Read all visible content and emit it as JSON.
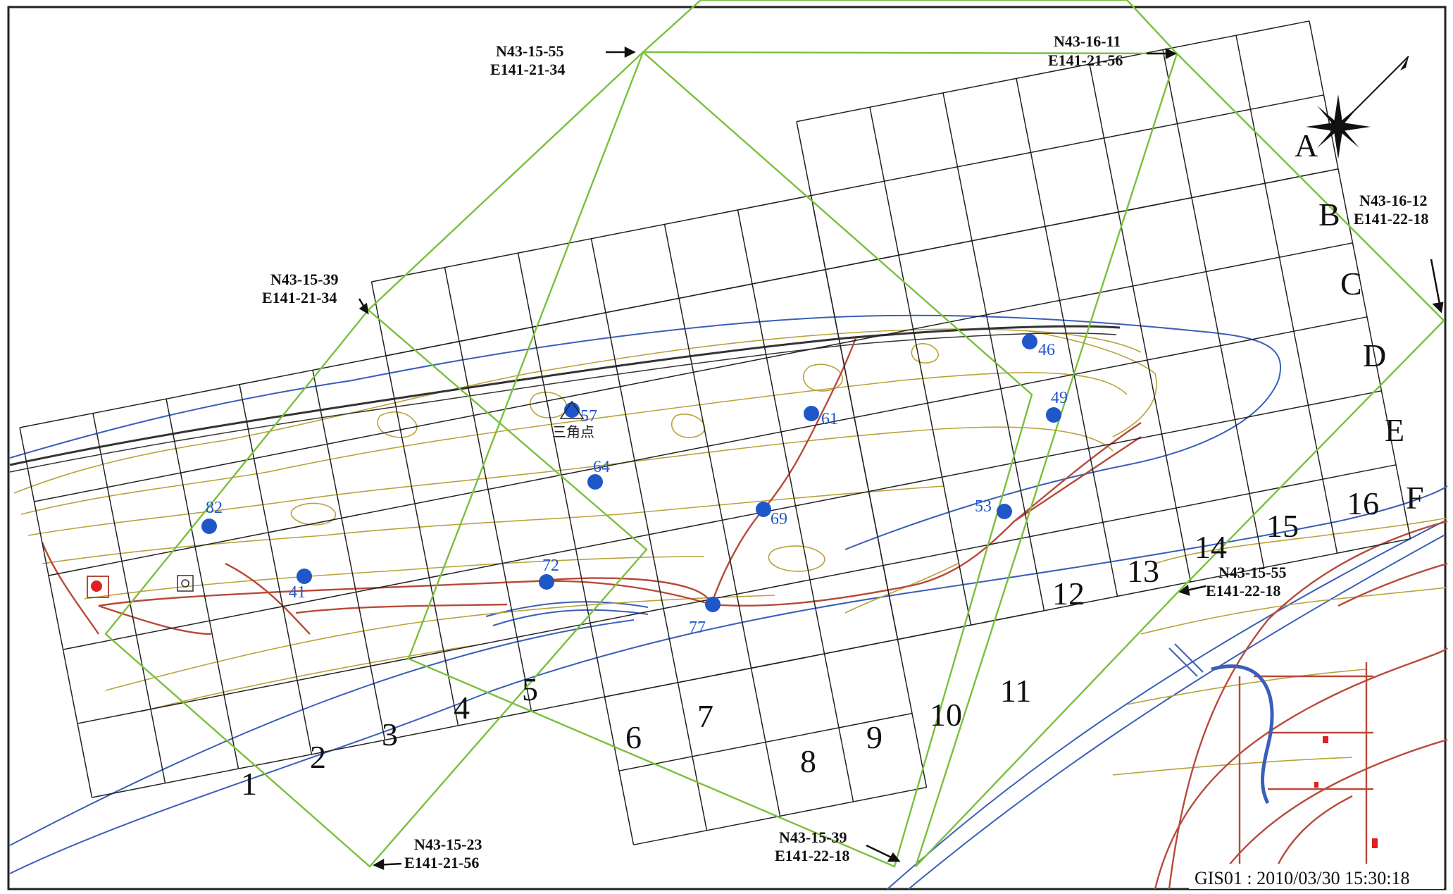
{
  "map": {
    "colors": {
      "grid": "#222222",
      "green_frame": "#7bbf3c",
      "river": "#3a5fb8",
      "contour": "#b9a23a",
      "road": "#b84a3a",
      "point": "#1f57c8",
      "marker": "#e02020"
    },
    "coordinates": [
      {
        "n": "N43-15-55",
        "e": "E141-21-34"
      },
      {
        "n": "N43-16-11",
        "e": "E141-21-56"
      },
      {
        "n": "N43-16-12",
        "e": "E141-22-18"
      },
      {
        "n": "N43-15-39",
        "e": "E141-21-34"
      },
      {
        "n": "N43-15-55",
        "e": "E141-22-18"
      },
      {
        "n": "N43-15-23",
        "e": "E141-21-56"
      },
      {
        "n": "N43-15-39",
        "e": "E141-22-18"
      }
    ],
    "column_labels": [
      "1",
      "2",
      "3",
      "4",
      "5",
      "6",
      "7",
      "8",
      "9",
      "10",
      "11",
      "12",
      "13",
      "14",
      "15",
      "16"
    ],
    "row_labels": [
      "A",
      "B",
      "C",
      "D",
      "E",
      "F"
    ],
    "points": [
      "82",
      "41",
      "57",
      "64",
      "72",
      "77",
      "69",
      "61",
      "46",
      "49",
      "53"
    ],
    "triangulation_label": "三角点",
    "north_arrow": "north-arrow-icon",
    "timestamp": "GIS01 : 2010/03/30 15:30:18"
  }
}
